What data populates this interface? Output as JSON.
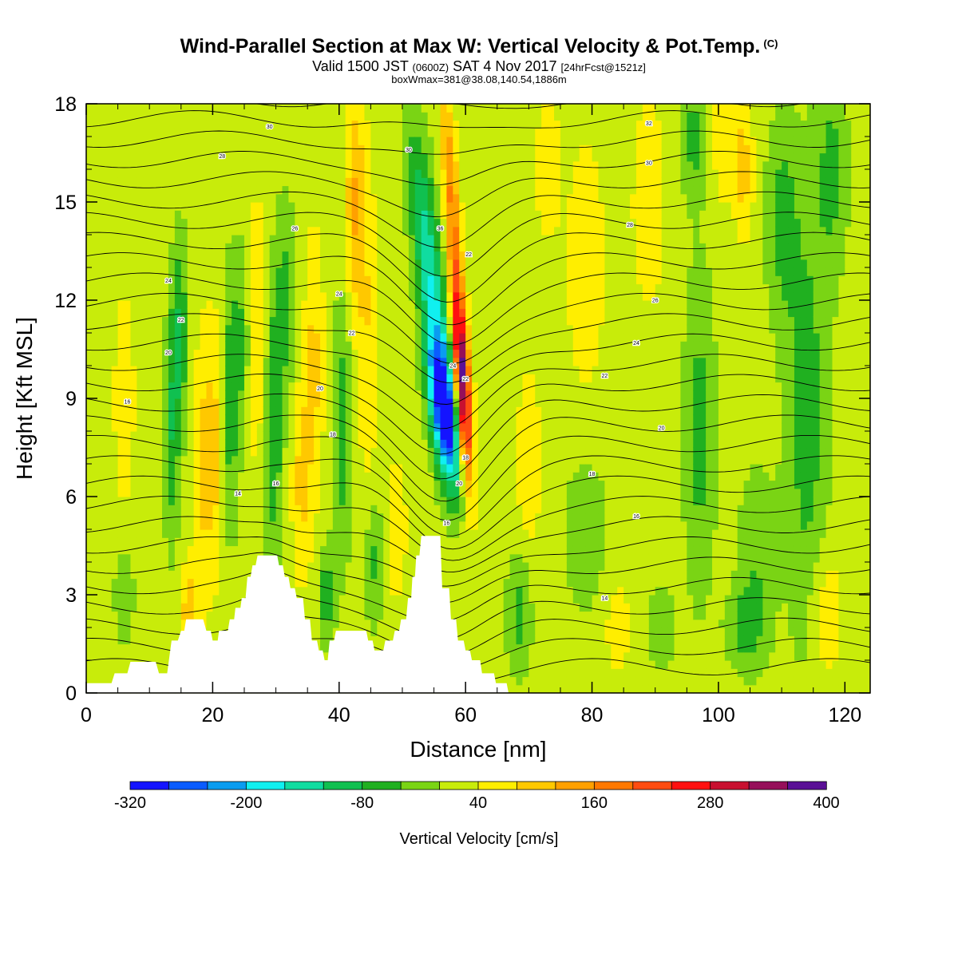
{
  "title": "Wind-Parallel Section at Max W: Vertical Velocity & Pot.Temp.",
  "copyright": "(C)",
  "subtitle": {
    "pre": "Valid 1500 JST",
    "utc": "(0600Z)",
    "date": "SAT 4 Nov 2017",
    "fcst": "[24hrFcst@1521z]"
  },
  "box_info": "boxWmax=381@38.08,140.54,1886m",
  "chart_data": {
    "type": "heatmap",
    "xlabel": "Distance [nm]",
    "ylabel": "Height [Kft MSL]",
    "xlim": [
      0,
      124
    ],
    "ylim": [
      0,
      18
    ],
    "x_ticks": [
      "0",
      "20",
      "40",
      "60",
      "80",
      "100",
      "120"
    ],
    "y_ticks": [
      "0",
      "3",
      "6",
      "9",
      "12",
      "15",
      "18"
    ],
    "colorbar": {
      "title": "Vertical Velocity [cm/s]",
      "labels": [
        "-320",
        "-200",
        "-80",
        "40",
        "160",
        "280",
        "400"
      ],
      "bins_cm_s": [
        -320,
        -280,
        -240,
        -200,
        -160,
        -120,
        -80,
        -40,
        0,
        40,
        80,
        120,
        160,
        200,
        240,
        280,
        320,
        360,
        400
      ],
      "colors": [
        "#1414ff",
        "#0a5cff",
        "#0a9cf0",
        "#10f0f0",
        "#10dca0",
        "#10c050",
        "#20b020",
        "#7ad414",
        "#c8ec0a",
        "#ffee00",
        "#ffc800",
        "#ffa000",
        "#ff7800",
        "#ff4c10",
        "#ff1010",
        "#c81030",
        "#960f5a",
        "#5a0f96"
      ]
    },
    "background_class_cm_s": [
      0,
      40
    ],
    "terrain_kft": [
      [
        0,
        0.3
      ],
      [
        4,
        0.3
      ],
      [
        4.5,
        0.6
      ],
      [
        6.5,
        0.6
      ],
      [
        7,
        0.95
      ],
      [
        11,
        0.95
      ],
      [
        11.5,
        0.6
      ],
      [
        12.8,
        0.6
      ],
      [
        13.5,
        1.6
      ],
      [
        14.5,
        1.6
      ],
      [
        15,
        1.9
      ],
      [
        15.5,
        1.9
      ],
      [
        15.8,
        2.25
      ],
      [
        18.5,
        2.25
      ],
      [
        19,
        1.9
      ],
      [
        19.7,
        1.9
      ],
      [
        20,
        1.6
      ],
      [
        20.8,
        1.6
      ],
      [
        21,
        1.9
      ],
      [
        22.4,
        1.9
      ],
      [
        22.7,
        2.25
      ],
      [
        23.4,
        2.25
      ],
      [
        23.6,
        2.6
      ],
      [
        24.4,
        2.6
      ],
      [
        24.6,
        2.9
      ],
      [
        25.2,
        2.9
      ],
      [
        25.5,
        3.55
      ],
      [
        26,
        3.55
      ],
      [
        26.3,
        3.9
      ],
      [
        26.8,
        3.9
      ],
      [
        27.1,
        4.2
      ],
      [
        30.2,
        4.2
      ],
      [
        30.5,
        3.9
      ],
      [
        31.1,
        3.9
      ],
      [
        31.4,
        3.55
      ],
      [
        32,
        3.55
      ],
      [
        32.3,
        3.2
      ],
      [
        33,
        3.2
      ],
      [
        33.3,
        2.9
      ],
      [
        34.3,
        2.9
      ],
      [
        34.6,
        2.25
      ],
      [
        35.4,
        2.25
      ],
      [
        35.7,
        1.6
      ],
      [
        36.5,
        1.6
      ],
      [
        36.8,
        1.3
      ],
      [
        37.4,
        1.3
      ],
      [
        37.7,
        1.0
      ],
      [
        38.2,
        1.0
      ],
      [
        38.5,
        1.6
      ],
      [
        39.2,
        1.6
      ],
      [
        39.5,
        1.9
      ],
      [
        44.3,
        1.9
      ],
      [
        44.6,
        1.6
      ],
      [
        45.3,
        1.6
      ],
      [
        45.6,
        1.3
      ],
      [
        47,
        1.3
      ],
      [
        47.3,
        1.6
      ],
      [
        48.5,
        1.6
      ],
      [
        48.8,
        1.9
      ],
      [
        49.5,
        1.9
      ],
      [
        49.8,
        2.25
      ],
      [
        50.6,
        2.25
      ],
      [
        50.9,
        2.9
      ],
      [
        51.4,
        2.9
      ],
      [
        51.6,
        3.55
      ],
      [
        52,
        3.55
      ],
      [
        52.2,
        4.2
      ],
      [
        52.7,
        4.2
      ],
      [
        53,
        4.8
      ],
      [
        56,
        4.8
      ],
      [
        56.3,
        3.2
      ],
      [
        57.4,
        3.2
      ],
      [
        57.7,
        2.25
      ],
      [
        58.5,
        2.25
      ],
      [
        58.8,
        1.6
      ],
      [
        59.7,
        1.6
      ],
      [
        60,
        1.3
      ],
      [
        60.7,
        1.3
      ],
      [
        61,
        1.0
      ],
      [
        62.3,
        1.0
      ],
      [
        62.6,
        0.6
      ],
      [
        64.5,
        0.6
      ],
      [
        64.8,
        0.3
      ],
      [
        66.5,
        0.3
      ],
      [
        66.8,
        0.0
      ],
      [
        124,
        0.0
      ]
    ],
    "theta_label_points": [
      {
        "x": 29,
        "z": 17.3,
        "text": "30"
      },
      {
        "x": 21.5,
        "z": 16.4,
        "text": "28"
      },
      {
        "x": 51,
        "z": 16.6,
        "text": "30"
      },
      {
        "x": 33,
        "z": 14.2,
        "text": "26"
      },
      {
        "x": 56,
        "z": 14.2,
        "text": "36"
      },
      {
        "x": 60.5,
        "z": 13.4,
        "text": "22"
      },
      {
        "x": 13,
        "z": 12.6,
        "text": "24"
      },
      {
        "x": 40,
        "z": 12.2,
        "text": "24"
      },
      {
        "x": 15,
        "z": 11.4,
        "text": "22"
      },
      {
        "x": 42,
        "z": 11.0,
        "text": "22"
      },
      {
        "x": 13,
        "z": 10.4,
        "text": "20"
      },
      {
        "x": 58,
        "z": 10.0,
        "text": "24"
      },
      {
        "x": 60,
        "z": 9.6,
        "text": "22"
      },
      {
        "x": 37,
        "z": 9.3,
        "text": "20"
      },
      {
        "x": 6.5,
        "z": 8.9,
        "text": "16"
      },
      {
        "x": 39,
        "z": 7.9,
        "text": "18"
      },
      {
        "x": 60,
        "z": 7.2,
        "text": "18"
      },
      {
        "x": 30,
        "z": 6.4,
        "text": "16"
      },
      {
        "x": 59,
        "z": 6.4,
        "text": "20"
      },
      {
        "x": 24,
        "z": 6.1,
        "text": "14"
      },
      {
        "x": 57,
        "z": 5.2,
        "text": "16"
      },
      {
        "x": 89,
        "z": 17.4,
        "text": "32"
      },
      {
        "x": 89,
        "z": 16.2,
        "text": "30"
      },
      {
        "x": 86,
        "z": 14.3,
        "text": "28"
      },
      {
        "x": 90,
        "z": 12.0,
        "text": "26"
      },
      {
        "x": 87,
        "z": 10.7,
        "text": "24"
      },
      {
        "x": 82,
        "z": 9.7,
        "text": "22"
      },
      {
        "x": 91,
        "z": 8.1,
        "text": "20"
      },
      {
        "x": 80,
        "z": 6.7,
        "text": "18"
      },
      {
        "x": 87,
        "z": 5.4,
        "text": "16"
      },
      {
        "x": 82,
        "z": 2.9,
        "text": "14"
      }
    ]
  }
}
